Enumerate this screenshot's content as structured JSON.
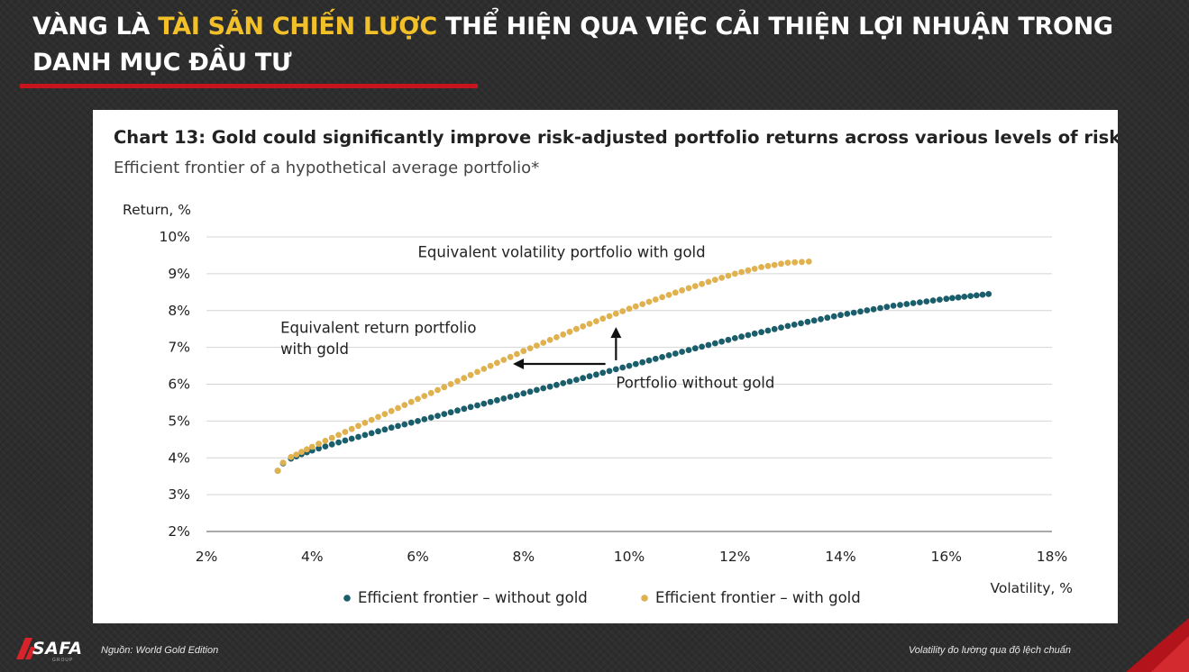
{
  "slide": {
    "title_part1": "VÀNG LÀ ",
    "title_highlight": "TÀI SẢN CHIẾN LƯỢC",
    "title_part2": " THỂ HIỆN QUA VIỆC CẢI THIỆN LỢI NHUẬN TRONG DANH MỤC ĐẦU TƯ",
    "source": "Nguồn: World Gold Edition",
    "footnote": "Volatility đo lường qua độ lệch chuẩn",
    "logo_text": "SAFA",
    "logo_sub": "GROUP",
    "accent_color": "#f2c029",
    "brand_red": "#c8141c"
  },
  "chart_data": {
    "type": "scatter",
    "title": "Chart 13: Gold could significantly improve risk-adjusted portfolio returns across various levels of risk",
    "subtitle": "Efficient frontier of a hypothetical average portfolio*",
    "ylabel": "Return, %",
    "xlabel": "Volatility, %",
    "xlim": [
      2,
      18
    ],
    "ylim": [
      2,
      10
    ],
    "xticks": [
      "2%",
      "4%",
      "6%",
      "8%",
      "10%",
      "12%",
      "14%",
      "16%",
      "18%"
    ],
    "yticks": [
      "2%",
      "3%",
      "4%",
      "5%",
      "6%",
      "7%",
      "8%",
      "9%",
      "10%"
    ],
    "grid": true,
    "legend_position": "bottom",
    "series": [
      {
        "name": "Efficient frontier – without gold",
        "color": "#1b5e6b",
        "points": [
          [
            3.35,
            3.65
          ],
          [
            3.45,
            3.85
          ],
          [
            3.6,
            3.98
          ],
          [
            3.8,
            4.1
          ],
          [
            4.0,
            4.2
          ],
          [
            4.5,
            4.42
          ],
          [
            5.0,
            4.62
          ],
          [
            5.5,
            4.82
          ],
          [
            6.0,
            5.0
          ],
          [
            7.0,
            5.38
          ],
          [
            8.0,
            5.75
          ],
          [
            9.0,
            6.12
          ],
          [
            10.0,
            6.5
          ],
          [
            11.0,
            6.88
          ],
          [
            12.0,
            7.25
          ],
          [
            13.0,
            7.58
          ],
          [
            14.0,
            7.88
          ],
          [
            15.0,
            8.13
          ],
          [
            16.0,
            8.32
          ],
          [
            16.8,
            8.45
          ]
        ]
      },
      {
        "name": "Efficient frontier – with gold",
        "color": "#e0b14f",
        "points": [
          [
            3.35,
            3.65
          ],
          [
            3.45,
            3.87
          ],
          [
            3.6,
            4.02
          ],
          [
            3.8,
            4.16
          ],
          [
            4.0,
            4.3
          ],
          [
            4.5,
            4.62
          ],
          [
            5.0,
            4.95
          ],
          [
            5.5,
            5.27
          ],
          [
            6.0,
            5.6
          ],
          [
            6.5,
            5.92
          ],
          [
            7.0,
            6.25
          ],
          [
            7.5,
            6.58
          ],
          [
            8.0,
            6.9
          ],
          [
            8.5,
            7.2
          ],
          [
            9.0,
            7.5
          ],
          [
            9.5,
            7.78
          ],
          [
            10.0,
            8.05
          ],
          [
            10.5,
            8.3
          ],
          [
            11.0,
            8.55
          ],
          [
            11.5,
            8.78
          ],
          [
            12.0,
            9.0
          ],
          [
            12.5,
            9.18
          ],
          [
            13.0,
            9.3
          ],
          [
            13.4,
            9.33
          ]
        ]
      }
    ],
    "annotations": [
      {
        "text": "Equivalent volatility portfolio with gold",
        "x": 6.0,
        "y": 9.45
      },
      {
        "text": "Equivalent return portfolio",
        "x": 3.4,
        "y": 7.4
      },
      {
        "text": "with gold",
        "x": 3.4,
        "y": 6.82
      },
      {
        "text": "Portfolio without gold",
        "x": 9.75,
        "y": 5.9
      }
    ],
    "arrows": [
      {
        "from": [
          9.75,
          6.65
        ],
        "to": [
          9.75,
          7.55
        ]
      },
      {
        "from": [
          9.55,
          6.55
        ],
        "to": [
          7.8,
          6.55
        ]
      }
    ]
  }
}
